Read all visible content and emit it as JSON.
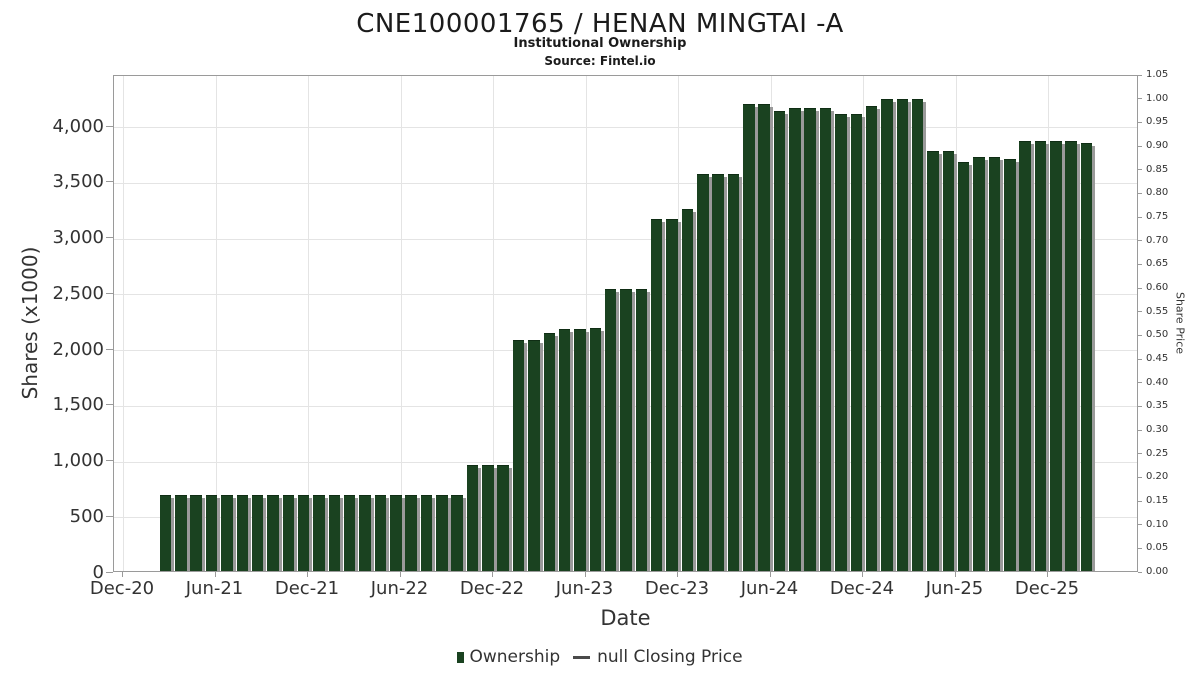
{
  "chart_data": {
    "type": "bar",
    "title": "CNE100001765 / HENAN MINGTAI -A",
    "subtitle": "Institutional Ownership",
    "source": "Source: Fintel.io",
    "xlabel": "Date",
    "ylabel_left": "Shares (x1000)",
    "ylabel_right": "Share Price",
    "bar_color": "#1a4220",
    "shadow_color": "#9a9a9a",
    "grid": true,
    "ylim_left": [
      0,
      4460
    ],
    "ylim_right": [
      0,
      1.05
    ],
    "y_ticks_left": [
      "0",
      "500",
      "1,000",
      "1,500",
      "2,000",
      "2,500",
      "3,000",
      "3,500",
      "4,000"
    ],
    "y_tick_left_values": [
      0,
      500,
      1000,
      1500,
      2000,
      2500,
      3000,
      3500,
      4000
    ],
    "y_ticks_right": [
      "0.00",
      "0.05",
      "0.10",
      "0.15",
      "0.20",
      "0.25",
      "0.30",
      "0.35",
      "0.40",
      "0.45",
      "0.50",
      "0.55",
      "0.60",
      "0.65",
      "0.70",
      "0.75",
      "0.80",
      "0.85",
      "0.90",
      "0.95",
      "1.00",
      "1.05"
    ],
    "x_ticks": [
      "Dec-20",
      "Jun-21",
      "Dec-21",
      "Jun-22",
      "Dec-22",
      "Jun-23",
      "Dec-23",
      "Jun-24",
      "Dec-24",
      "Jun-25",
      "Dec-25"
    ],
    "x_range": {
      "first_bar_month": "Mar-21",
      "last_bar_month": "Mar-26",
      "interval": "monthly"
    },
    "series": [
      {
        "name": "Ownership",
        "unit": "shares x1000",
        "values": [
          670,
          670,
          670,
          670,
          670,
          670,
          670,
          670,
          670,
          670,
          670,
          670,
          670,
          670,
          670,
          670,
          670,
          670,
          670,
          670,
          940,
          940,
          940,
          2060,
          2060,
          2130,
          2160,
          2160,
          2170,
          2520,
          2520,
          2520,
          3150,
          3150,
          3240,
          3550,
          3550,
          3550,
          4180,
          4180,
          4120,
          4150,
          4150,
          4150,
          4090,
          4090,
          4160,
          4230,
          4230,
          4230,
          3760,
          3760,
          3660,
          3710,
          3710,
          3690,
          3850,
          3850,
          3850,
          3850,
          3830
        ]
      }
    ],
    "legend_position": "bottom"
  },
  "legend": {
    "ownership_label": "Ownership",
    "closing_price_label": "null Closing Price"
  }
}
